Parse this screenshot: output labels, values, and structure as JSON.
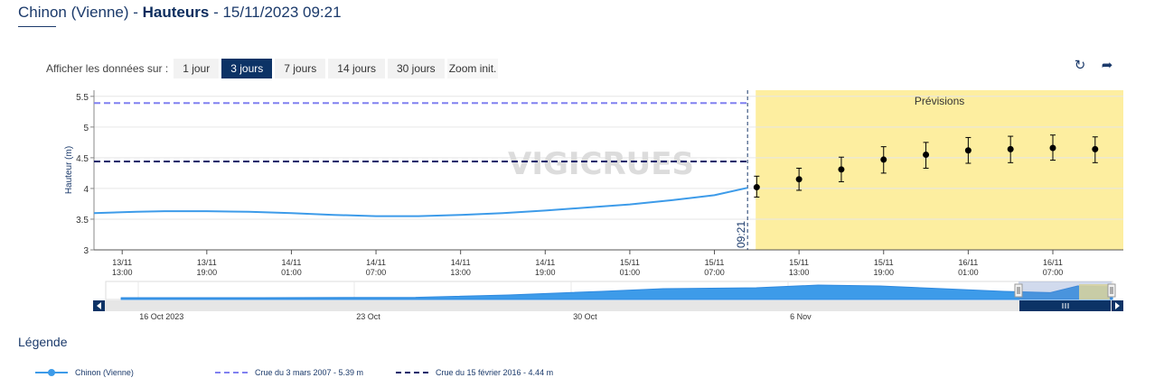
{
  "header": {
    "station": "Chinon (Vienne)",
    "separator1": " - ",
    "measure": "Hauteurs",
    "separator2": " - ",
    "datetime": "15/11/2023 09:21"
  },
  "range_selector": {
    "label": "Afficher les données sur :",
    "buttons": [
      "1 jour",
      "3 jours",
      "7 jours",
      "14 jours",
      "30 jours",
      "Zoom init."
    ],
    "active_index": 1
  },
  "toolbar": {
    "refresh_icon": "refresh-icon",
    "share_icon": "share-icon"
  },
  "chart_data": {
    "type": "line",
    "ylabel": "Hauteur (m)",
    "ylim": [
      3,
      5.6
    ],
    "yticks": [
      "3",
      "3.5",
      "4",
      "4.5",
      "5",
      "5.5"
    ],
    "xlim": [
      "2023-11-13T11:00",
      "2023-11-16T12:00"
    ],
    "xticks": [
      {
        "t": "2023-11-13T13:00",
        "d": "13/11",
        "h": "13:00"
      },
      {
        "t": "2023-11-13T19:00",
        "d": "13/11",
        "h": "19:00"
      },
      {
        "t": "2023-11-14T01:00",
        "d": "14/11",
        "h": "01:00"
      },
      {
        "t": "2023-11-14T07:00",
        "d": "14/11",
        "h": "07:00"
      },
      {
        "t": "2023-11-14T13:00",
        "d": "14/11",
        "h": "13:00"
      },
      {
        "t": "2023-11-14T19:00",
        "d": "14/11",
        "h": "19:00"
      },
      {
        "t": "2023-11-15T01:00",
        "d": "15/11",
        "h": "01:00"
      },
      {
        "t": "2023-11-15T07:00",
        "d": "15/11",
        "h": "07:00"
      },
      {
        "t": "2023-11-15T13:00",
        "d": "15/11",
        "h": "13:00"
      },
      {
        "t": "2023-11-15T19:00",
        "d": "15/11",
        "h": "19:00"
      },
      {
        "t": "2023-11-16T01:00",
        "d": "16/11",
        "h": "01:00"
      },
      {
        "t": "2023-11-16T07:00",
        "d": "16/11",
        "h": "07:00"
      }
    ],
    "observed": {
      "name": "Chinon (Vienne)",
      "color": "#3d9be9",
      "points": [
        [
          "2023-11-13T11:00",
          3.6
        ],
        [
          "2023-11-13T14:00",
          3.62
        ],
        [
          "2023-11-13T16:00",
          3.63
        ],
        [
          "2023-11-13T19:00",
          3.63
        ],
        [
          "2023-11-13T22:00",
          3.62
        ],
        [
          "2023-11-14T01:00",
          3.6
        ],
        [
          "2023-11-14T04:00",
          3.57
        ],
        [
          "2023-11-14T07:00",
          3.55
        ],
        [
          "2023-11-14T10:00",
          3.55
        ],
        [
          "2023-11-14T13:00",
          3.57
        ],
        [
          "2023-11-14T16:00",
          3.6
        ],
        [
          "2023-11-14T19:00",
          3.64
        ],
        [
          "2023-11-14T22:00",
          3.69
        ],
        [
          "2023-11-15T01:00",
          3.74
        ],
        [
          "2023-11-15T04:00",
          3.81
        ],
        [
          "2023-11-15T07:00",
          3.89
        ],
        [
          "2023-11-15T09:21",
          4.01
        ]
      ]
    },
    "forecast": {
      "label": "Prévisions",
      "start": "2023-11-15T09:21",
      "now_label": "09:21",
      "band_color": "#fdeea0",
      "points": [
        {
          "t": "2023-11-15T10:00",
          "y": 4.02,
          "lo": 3.86,
          "hi": 4.2
        },
        {
          "t": "2023-11-15T13:00",
          "y": 4.15,
          "lo": 3.97,
          "hi": 4.33
        },
        {
          "t": "2023-11-15T16:00",
          "y": 4.31,
          "lo": 4.11,
          "hi": 4.51
        },
        {
          "t": "2023-11-15T19:00",
          "y": 4.47,
          "lo": 4.25,
          "hi": 4.68
        },
        {
          "t": "2023-11-15T22:00",
          "y": 4.55,
          "lo": 4.33,
          "hi": 4.75
        },
        {
          "t": "2023-11-16T01:00",
          "y": 4.62,
          "lo": 4.41,
          "hi": 4.83
        },
        {
          "t": "2023-11-16T04:00",
          "y": 4.64,
          "lo": 4.42,
          "hi": 4.85
        },
        {
          "t": "2023-11-16T07:00",
          "y": 4.66,
          "lo": 4.46,
          "hi": 4.87
        },
        {
          "t": "2023-11-16T10:00",
          "y": 4.64,
          "lo": 4.42,
          "hi": 4.84
        }
      ]
    },
    "thresholds": [
      {
        "name": "Crue du 3 mars 2007 - 5.39 m",
        "value": 5.39,
        "color": "#8080f0"
      },
      {
        "name": "Crue du 15 février 2016 - 4.44 m",
        "value": 4.44,
        "color": "#0c1a6b"
      }
    ],
    "watermark": "VIGICRUES",
    "navigator": {
      "xlim": [
        "2023-10-15T00:00",
        "2023-11-16T12:00"
      ],
      "labels": [
        {
          "t": "2023-10-16T00:00",
          "text": "16 Oct 2023"
        },
        {
          "t": "2023-10-23T00:00",
          "text": "23 Oct"
        },
        {
          "t": "2023-10-30T00:00",
          "text": "30 Oct"
        },
        {
          "t": "2023-11-06T00:00",
          "text": "6 Nov"
        }
      ],
      "series": [
        [
          "2023-10-15T12:00",
          3.3
        ],
        [
          "2023-10-20T00:00",
          3.3
        ],
        [
          "2023-10-25T00:00",
          3.32
        ],
        [
          "2023-10-28T00:00",
          3.45
        ],
        [
          "2023-10-31T00:00",
          3.65
        ],
        [
          "2023-11-02T00:00",
          3.8
        ],
        [
          "2023-11-05T00:00",
          3.85
        ],
        [
          "2023-11-07T00:00",
          4.0
        ],
        [
          "2023-11-09T00:00",
          3.95
        ],
        [
          "2023-11-11T00:00",
          3.8
        ],
        [
          "2023-11-13T00:00",
          3.65
        ],
        [
          "2023-11-14T12:00",
          3.58
        ],
        [
          "2023-11-15T09:00",
          3.95
        ],
        [
          "2023-11-16T12:00",
          3.9
        ]
      ]
    }
  },
  "legend": {
    "title": "Légende",
    "items": [
      {
        "label": "Chinon (Vienne)",
        "style": "line-marker",
        "color": "#3d9be9"
      },
      {
        "label": "Crue du 3 mars 2007 - 5.39 m",
        "style": "dash",
        "color": "#8080f0"
      },
      {
        "label": "Crue du 15 février 2016 - 4.44 m",
        "style": "dash",
        "color": "#0c1a6b"
      }
    ]
  }
}
